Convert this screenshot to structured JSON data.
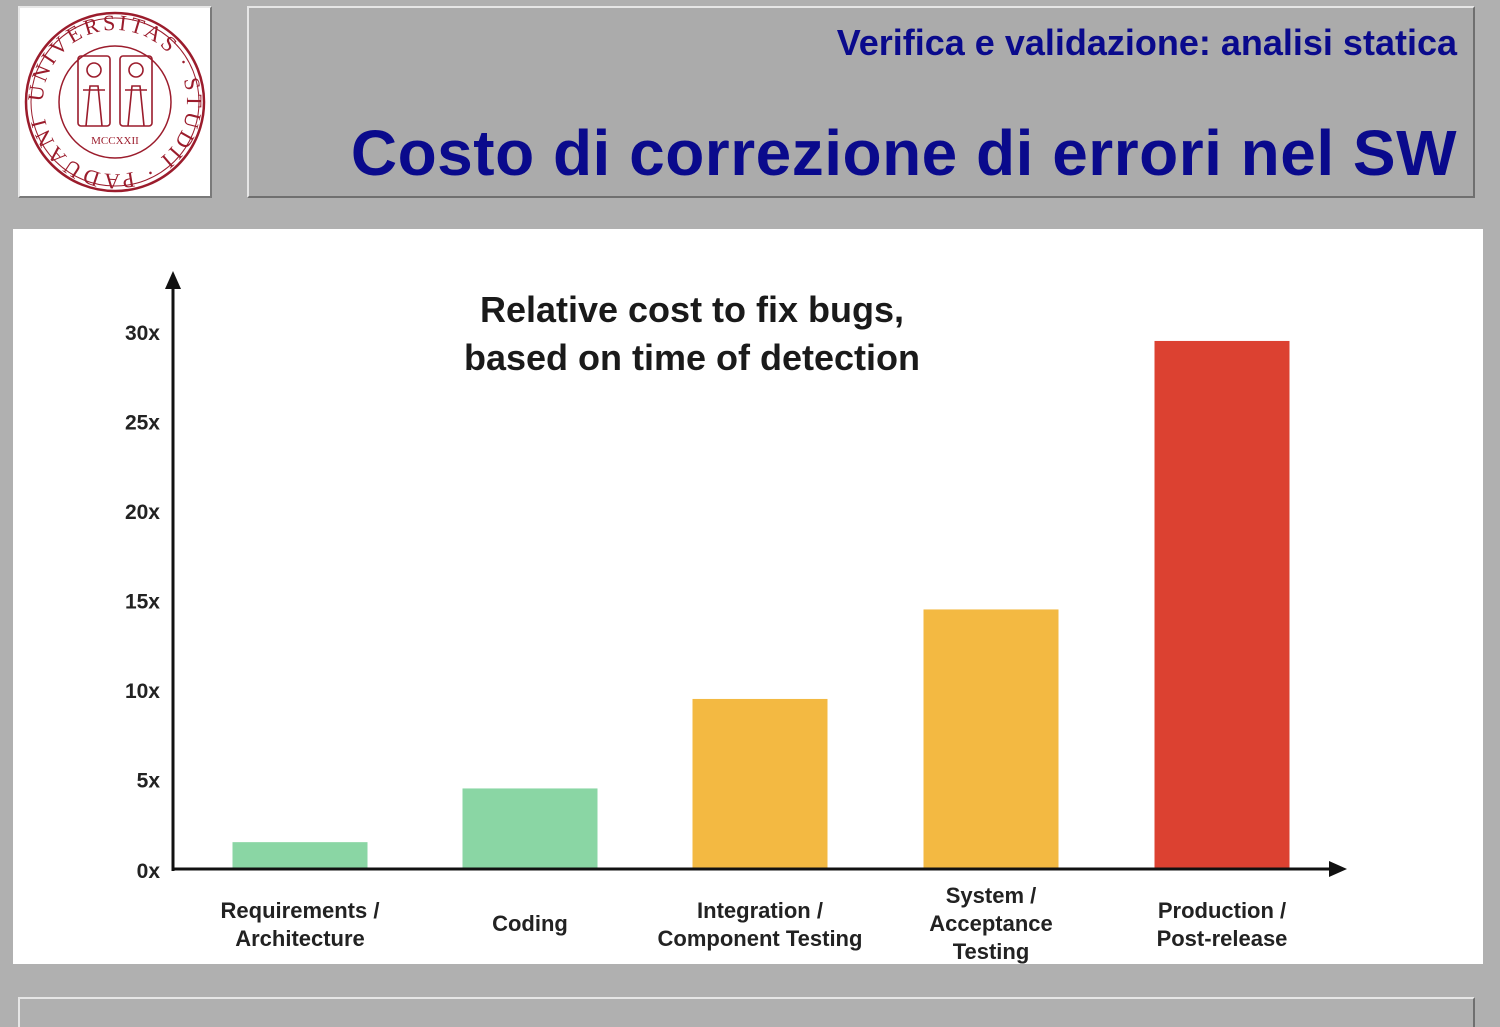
{
  "header": {
    "subtitle": "Verifica e validazione: analisi statica",
    "title": "Costo di correzione di errori nel SW"
  },
  "logo": {
    "ring_text": "UNIVERSITAS · STUDII · PADUANI ·",
    "year": "MCCXXII",
    "color": "#9b1c2c"
  },
  "chart_data": {
    "type": "bar",
    "title_lines": [
      "Relative cost to fix bugs,",
      "based on time of detection"
    ],
    "categories": [
      [
        "Requirements /",
        "Architecture"
      ],
      [
        "Coding"
      ],
      [
        "Integration /",
        "Component Testing"
      ],
      [
        "System /",
        "Acceptance",
        "Testing"
      ],
      [
        "Production /",
        "Post-release"
      ]
    ],
    "values": [
      1.5,
      4.5,
      9.5,
      14.5,
      29.5
    ],
    "colors": [
      "#8ad6a4",
      "#8ad6a4",
      "#f3b942",
      "#f3b942",
      "#dc4131"
    ],
    "yticks": [
      {
        "value": 0,
        "label": "0x"
      },
      {
        "value": 5,
        "label": "5x"
      },
      {
        "value": 10,
        "label": "10x"
      },
      {
        "value": 15,
        "label": "15x"
      },
      {
        "value": 20,
        "label": "20x"
      },
      {
        "value": 25,
        "label": "25x"
      },
      {
        "value": 30,
        "label": "30x"
      }
    ],
    "ylim": [
      0,
      30
    ],
    "grid": false,
    "xlabel": "",
    "ylabel": ""
  }
}
